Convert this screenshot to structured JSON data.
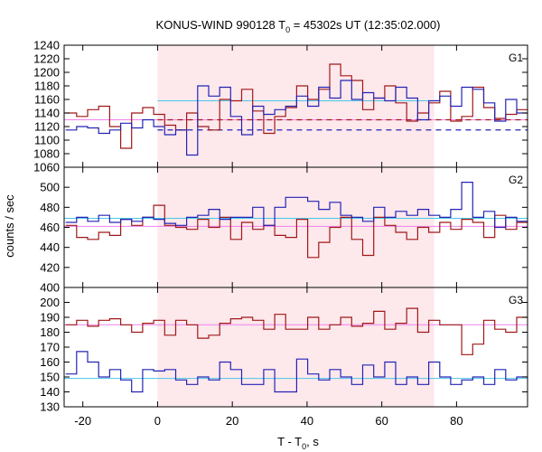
{
  "chart_data": {
    "type": "line",
    "title_main": "KONUS-WIND 990128 T",
    "title_sub": "0",
    "title_rest": " = 45302s UT (12:35:02.000)",
    "xlabel_main": "T - T",
    "xlabel_sub": "0",
    "xlabel_rest": ", s",
    "ylabel": "counts / sec",
    "xlim": [
      -25,
      99
    ],
    "xticks": [
      -20,
      0,
      20,
      40,
      60,
      80
    ],
    "bin_width": 2.944,
    "bin_start": -24.6,
    "shaded_interval": [
      0,
      74
    ],
    "shade_color": "#fde8ec",
    "colors": {
      "red": "#a01818",
      "blue": "#2424b4",
      "pink": "#ee82ee",
      "cyan": "#48c8e8"
    },
    "panels": [
      {
        "label": "G1",
        "ylim": [
          1060,
          1240
        ],
        "yticks": [
          1060,
          1080,
          1100,
          1120,
          1140,
          1160,
          1180,
          1200,
          1220,
          1240
        ],
        "background_red": 1130,
        "background_blue": 1115,
        "bg_line_start": 0,
        "bg_line_end": 74,
        "mean_lines": [
          {
            "color": "pink",
            "value": 1130,
            "from": -25,
            "to": 99
          },
          {
            "color": "cyan",
            "value": 1158,
            "from": 0,
            "to": 74
          }
        ],
        "series": [
          {
            "color": "red",
            "values": [
              1140,
              1135,
              1145,
              1150,
              1120,
              1088,
              1140,
              1148,
              1138,
              1122,
              1115,
              1140,
              1120,
              1115,
              1160,
              1158,
              1175,
              1143,
              1110,
              1135,
              1148,
              1180,
              1160,
              1175,
              1212,
              1195,
              1188,
              1145,
              1162,
              1180,
              1155,
              1128,
              1140,
              1155,
              1172,
              1128,
              1135,
              1178,
              1148,
              1132,
              1138,
              1145,
              1130,
              1125,
              1118,
              1148,
              1140,
              1130,
              1125,
              1130,
              1140,
              1135,
              1128,
              1130,
              1132,
              1138,
              1125,
              1120,
              1142,
              1130,
              1128,
              1125
            ]
          },
          {
            "color": "blue",
            "values": [
              1115,
              1120,
              1118,
              1110,
              1115,
              1125,
              1118,
              1130,
              1120,
              1108,
              1115,
              1078,
              1180,
              1165,
              1178,
              1135,
              1108,
              1150,
              1138,
              1145,
              1150,
              1165,
              1150,
              1178,
              1162,
              1188,
              1160,
              1170,
              1162,
              1158,
              1178,
              1162,
              1130,
              1158,
              1165,
              1150,
              1178,
              1175,
              1155,
              1128,
              1160,
              1140,
              1148,
              1130,
              1138,
              1175,
              1160,
              1105,
              1135,
              1125,
              1120,
              1108,
              1118,
              1130,
              1128,
              1178,
              1118,
              1130,
              1120,
              1108,
              1115,
              1120
            ]
          }
        ]
      },
      {
        "label": "G2",
        "ylim": [
          400,
          520
        ],
        "yticks": [
          400,
          420,
          440,
          460,
          480,
          500
        ],
        "mean_lines": [
          {
            "color": "pink",
            "value": 461,
            "from": -25,
            "to": 99
          },
          {
            "color": "cyan",
            "value": 469,
            "from": -25,
            "to": 99
          }
        ],
        "series": [
          {
            "color": "red",
            "values": [
              462,
              450,
              448,
              455,
              452,
              468,
              462,
              470,
              482,
              462,
              460,
              458,
              468,
              460,
              470,
              448,
              465,
              458,
              462,
              452,
              450,
              468,
              430,
              445,
              460,
              470,
              448,
              432,
              470,
              462,
              455,
              448,
              460,
              455,
              465,
              458,
              468,
              465,
              450,
              472,
              458,
              465,
              480,
              455,
              468,
              462,
              460,
              458,
              450,
              464,
              470,
              458,
              462,
              474,
              455,
              470,
              458,
              465,
              462,
              458,
              452,
              460
            ]
          },
          {
            "color": "blue",
            "values": [
              465,
              470,
              466,
              472,
              465,
              468,
              466,
              470,
              468,
              464,
              462,
              470,
              472,
              478,
              468,
              470,
              470,
              480,
              462,
              480,
              490,
              490,
              486,
              478,
              485,
              472,
              470,
              466,
              480,
              470,
              476,
              472,
              478,
              472,
              470,
              478,
              505,
              470,
              476,
              460,
              470,
              466,
              472,
              458,
              468,
              476,
              475,
              480,
              466,
              472,
              478,
              455,
              488,
              475,
              470,
              482,
              476,
              470,
              472,
              465,
              470,
              468
            ]
          }
        ]
      },
      {
        "label": "G3",
        "ylim": [
          130,
          210
        ],
        "yticks": [
          130,
          140,
          150,
          160,
          170,
          180,
          190,
          200
        ],
        "mean_lines": [
          {
            "color": "pink",
            "value": 185,
            "from": -25,
            "to": 99
          },
          {
            "color": "cyan",
            "value": 149,
            "from": -25,
            "to": 99
          }
        ],
        "series": [
          {
            "color": "red",
            "values": [
              185,
              188,
              184,
              188,
              189,
              185,
              180,
              186,
              188,
              178,
              188,
              185,
              176,
              178,
              186,
              189,
              190,
              188,
              182,
              192,
              182,
              182,
              190,
              182,
              185,
              190,
              184,
              186,
              194,
              182,
              186,
              196,
              180,
              188,
              185,
              185,
              165,
              172,
              188,
              182,
              180,
              190,
              183,
              184,
              186,
              186,
              187,
              188,
              184,
              186,
              186,
              190,
              184,
              176,
              186,
              190,
              184,
              182,
              186,
              195,
              190,
              192
            ]
          },
          {
            "color": "blue",
            "values": [
              152,
              167,
              160,
              150,
              155,
              148,
              140,
              155,
              154,
              155,
              148,
              145,
              150,
              148,
              160,
              155,
              145,
              145,
              155,
              140,
              140,
              162,
              152,
              148,
              155,
              150,
              145,
              158,
              150,
              160,
              145,
              150,
              145,
              160,
              150,
              145,
              148,
              150,
              145,
              155,
              148,
              150,
              150,
              152,
              152,
              155,
              145,
              150,
              152,
              150,
              148,
              145,
              155,
              150,
              150,
              156,
              150,
              148,
              145,
              152,
              150,
              148
            ]
          }
        ]
      }
    ]
  }
}
